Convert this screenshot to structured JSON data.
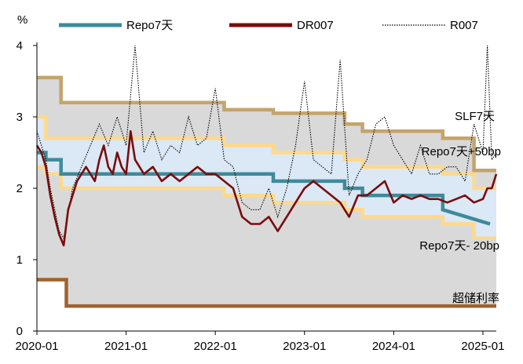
{
  "chart_data": {
    "type": "line",
    "title": "",
    "ylabel": "%",
    "xlabel": "",
    "ylim": [
      0,
      4
    ],
    "yticks": [
      "0",
      "1",
      "2",
      "3",
      "4"
    ],
    "xlim": [
      2020.0,
      2025.15
    ],
    "xticks": [
      {
        "x": 2020.0,
        "label": "2020-01"
      },
      {
        "x": 2021.0,
        "label": "2021-01"
      },
      {
        "x": 2022.0,
        "label": "2022-01"
      },
      {
        "x": 2023.0,
        "label": "2023-01"
      },
      {
        "x": 2024.0,
        "label": "2024-01"
      },
      {
        "x": 2025.0,
        "label": "2025-01"
      }
    ],
    "colors": {
      "band_outer": "#d9d9d9",
      "band_inner": "#dbe8f5",
      "slf7": "#c4a46b",
      "repo_plus50": "#ffd98a",
      "repo_minus20": "#ffd98a",
      "ioer": "#a0622d",
      "repo7": "#3e8a9a",
      "dr007": "#7a0c0c",
      "r007": "#000000"
    },
    "legend": [
      {
        "key": "repo7",
        "label": "Repo7天"
      },
      {
        "key": "dr007",
        "label": "DR007"
      },
      {
        "key": "r007",
        "label": "R007"
      }
    ],
    "annotations": [
      {
        "key": "slf7",
        "text": "SLF7天"
      },
      {
        "key": "repo_plus50",
        "text": "Repo7天+50bp"
      },
      {
        "key": "repo_minus20",
        "text": "Repo7天- 20bp"
      },
      {
        "key": "ioer",
        "text": "超储利率"
      }
    ],
    "series": {
      "slf7": {
        "x": [
          2020.0,
          2020.27,
          2020.27,
          2022.1,
          2022.1,
          2022.65,
          2022.65,
          2023.45,
          2023.45,
          2023.65,
          2023.65,
          2024.55,
          2024.55,
          2024.9,
          2024.9,
          2025.15
        ],
        "y": [
          3.55,
          3.55,
          3.2,
          3.2,
          3.1,
          3.1,
          3.05,
          3.05,
          2.9,
          2.9,
          2.8,
          2.8,
          2.7,
          2.7,
          2.25,
          2.25
        ]
      },
      "repo_plus50": {
        "x": [
          2020.0,
          2020.1,
          2020.1,
          2020.27,
          2020.27,
          2022.1,
          2022.1,
          2022.65,
          2022.65,
          2023.45,
          2023.45,
          2023.65,
          2023.65,
          2024.55,
          2024.55,
          2024.9,
          2024.9,
          2025.15
        ],
        "y": [
          3.0,
          3.0,
          2.7,
          2.7,
          2.7,
          2.7,
          2.6,
          2.6,
          2.5,
          2.5,
          2.4,
          2.4,
          2.3,
          2.3,
          2.2,
          2.2,
          2.0,
          2.0
        ]
      },
      "repo7": {
        "x": [
          2020.0,
          2020.1,
          2020.1,
          2020.27,
          2020.27,
          2022.65,
          2022.65,
          2023.45,
          2023.45,
          2023.65,
          2023.65,
          2024.55,
          2024.55,
          2025.08
        ],
        "y": [
          2.5,
          2.5,
          2.4,
          2.4,
          2.2,
          2.2,
          2.1,
          2.1,
          2.0,
          2.0,
          1.9,
          1.9,
          1.7,
          1.5
        ]
      },
      "repo_minus20": {
        "x": [
          2020.0,
          2020.1,
          2020.1,
          2020.27,
          2020.27,
          2022.1,
          2022.1,
          2022.65,
          2022.65,
          2023.45,
          2023.45,
          2023.65,
          2023.65,
          2024.55,
          2024.55,
          2024.9,
          2024.9,
          2025.15
        ],
        "y": [
          2.3,
          2.3,
          2.2,
          2.2,
          2.0,
          2.0,
          1.9,
          1.9,
          1.8,
          1.8,
          1.7,
          1.7,
          1.6,
          1.6,
          1.5,
          1.5,
          1.3,
          1.3
        ]
      },
      "ioer": {
        "x": [
          2020.0,
          2020.33,
          2020.33,
          2025.15
        ],
        "y": [
          0.72,
          0.72,
          0.35,
          0.35
        ]
      },
      "dr007": {
        "x": [
          2020.0,
          2020.05,
          2020.1,
          2020.15,
          2020.2,
          2020.25,
          2020.3,
          2020.35,
          2020.4,
          2020.45,
          2020.5,
          2020.55,
          2020.6,
          2020.65,
          2020.7,
          2020.75,
          2020.8,
          2020.85,
          2020.9,
          2020.95,
          2021.0,
          2021.05,
          2021.1,
          2021.2,
          2021.3,
          2021.4,
          2021.5,
          2021.6,
          2021.7,
          2021.8,
          2021.9,
          2022.0,
          2022.1,
          2022.2,
          2022.3,
          2022.4,
          2022.5,
          2022.6,
          2022.7,
          2022.8,
          2022.9,
          2023.0,
          2023.1,
          2023.2,
          2023.3,
          2023.4,
          2023.5,
          2023.6,
          2023.7,
          2023.8,
          2023.9,
          2024.0,
          2024.1,
          2024.2,
          2024.3,
          2024.4,
          2024.5,
          2024.6,
          2024.7,
          2024.8,
          2024.9,
          2025.0,
          2025.05,
          2025.1,
          2025.15
        ],
        "y": [
          2.6,
          2.5,
          2.3,
          1.9,
          1.6,
          1.35,
          1.2,
          1.7,
          1.9,
          2.1,
          2.2,
          2.3,
          2.2,
          2.1,
          2.4,
          2.6,
          2.3,
          2.2,
          2.5,
          2.3,
          2.2,
          2.8,
          2.4,
          2.2,
          2.3,
          2.1,
          2.2,
          2.1,
          2.2,
          2.3,
          2.2,
          2.2,
          2.1,
          2.0,
          1.6,
          1.5,
          1.5,
          1.6,
          1.4,
          1.6,
          1.8,
          2.0,
          2.1,
          2.0,
          1.9,
          1.8,
          1.6,
          1.9,
          1.9,
          2.0,
          2.1,
          1.8,
          1.9,
          1.85,
          1.9,
          1.85,
          1.85,
          1.8,
          1.85,
          1.9,
          1.8,
          1.85,
          2.0,
          2.0,
          2.2
        ]
      },
      "r007": {
        "x": [
          2020.0,
          2020.05,
          2020.1,
          2020.15,
          2020.2,
          2020.25,
          2020.3,
          2020.4,
          2020.5,
          2020.6,
          2020.7,
          2020.8,
          2020.9,
          2021.0,
          2021.1,
          2021.2,
          2021.3,
          2021.4,
          2021.5,
          2021.6,
          2021.7,
          2021.8,
          2021.9,
          2022.0,
          2022.1,
          2022.2,
          2022.3,
          2022.4,
          2022.5,
          2022.6,
          2022.7,
          2022.8,
          2022.9,
          2023.0,
          2023.1,
          2023.2,
          2023.3,
          2023.4,
          2023.5,
          2023.6,
          2023.7,
          2023.8,
          2023.9,
          2024.0,
          2024.1,
          2024.2,
          2024.3,
          2024.4,
          2024.5,
          2024.6,
          2024.7,
          2024.8,
          2024.9,
          2025.0,
          2025.05,
          2025.1,
          2025.15
        ],
        "y": [
          2.8,
          2.6,
          2.4,
          2.0,
          1.7,
          1.4,
          1.3,
          2.0,
          2.3,
          2.6,
          2.9,
          2.6,
          3.0,
          2.6,
          4.0,
          2.5,
          2.8,
          2.4,
          2.6,
          2.5,
          3.0,
          2.6,
          2.7,
          3.4,
          2.4,
          2.3,
          1.8,
          1.7,
          1.7,
          2.0,
          1.6,
          2.0,
          2.6,
          3.5,
          2.4,
          2.3,
          2.2,
          3.8,
          1.9,
          2.2,
          2.4,
          2.9,
          3.0,
          2.6,
          2.4,
          2.2,
          2.6,
          2.2,
          2.2,
          2.3,
          2.3,
          2.1,
          2.9,
          2.5,
          4.0,
          2.4,
          2.5
        ]
      }
    }
  }
}
